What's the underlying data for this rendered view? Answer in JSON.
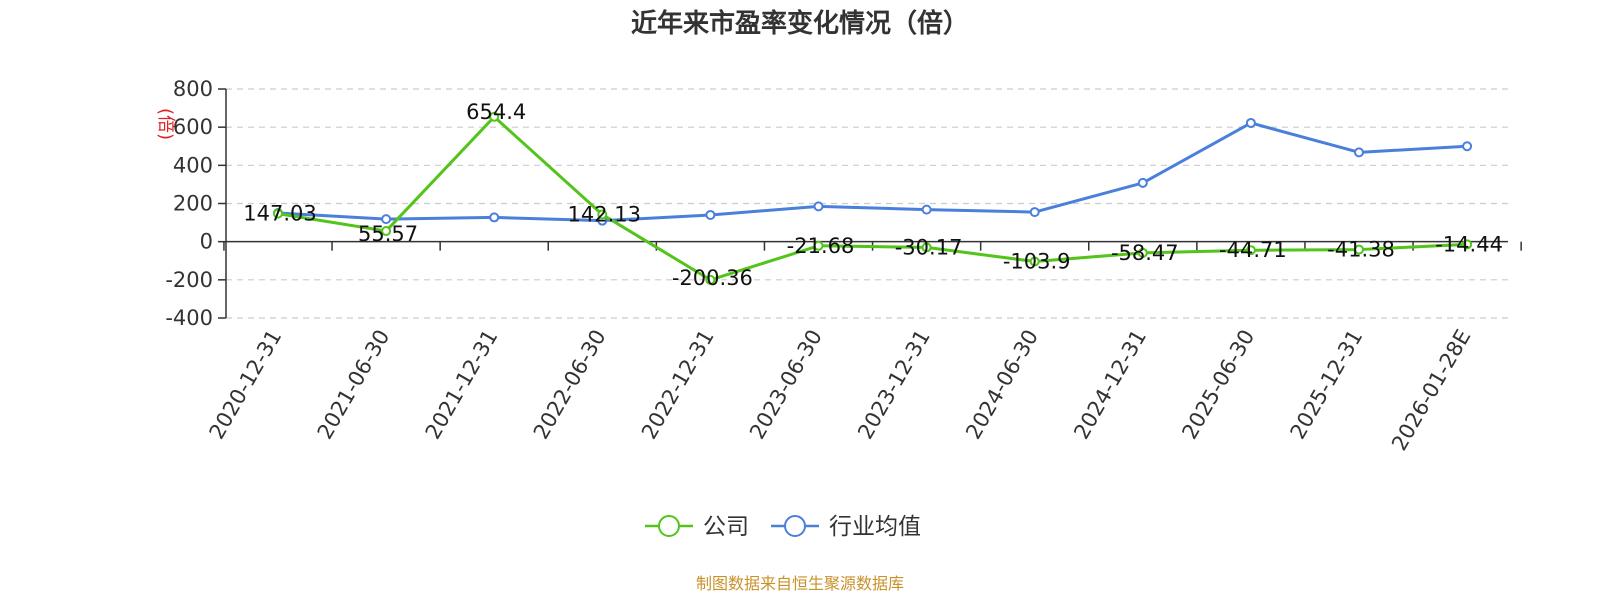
{
  "chart_data": {
    "type": "line",
    "title": "近年来市盈率变化情况（倍）",
    "ylabel": "(倍)",
    "xlabel": "",
    "categories": [
      "2020-12-31",
      "2021-06-30",
      "2021-12-31",
      "2022-06-30",
      "2022-12-31",
      "2023-06-30",
      "2023-12-31",
      "2024-06-30",
      "2024-12-31",
      "2025-06-30",
      "2025-12-31",
      "2026-01-28E"
    ],
    "ylim": [
      -400,
      800
    ],
    "yticks": [
      800,
      600,
      400,
      200,
      0,
      -200,
      -400
    ],
    "grid": true,
    "legend_position": "bottom",
    "series": [
      {
        "name": "公司",
        "color": "#52c41a",
        "values": [
          147.03,
          55.57,
          654.4,
          142.13,
          -200.36,
          -21.68,
          -30.17,
          -103.9,
          -58.47,
          -44.71,
          -41.38,
          -14.44
        ],
        "labels": [
          "147.03",
          "55.57",
          "654.4",
          "142.13",
          "-200.36",
          "-21.68",
          "-30.17",
          "-103.9",
          "-58.47",
          "-44.71",
          "-41.38",
          "-14.44"
        ]
      },
      {
        "name": "行业均值",
        "color": "#4a7fdb",
        "values": [
          150,
          118,
          127,
          110,
          140,
          185,
          168,
          155,
          308,
          622,
          468,
          500
        ]
      }
    ]
  },
  "source": "制图数据来自恒生聚源数据库"
}
